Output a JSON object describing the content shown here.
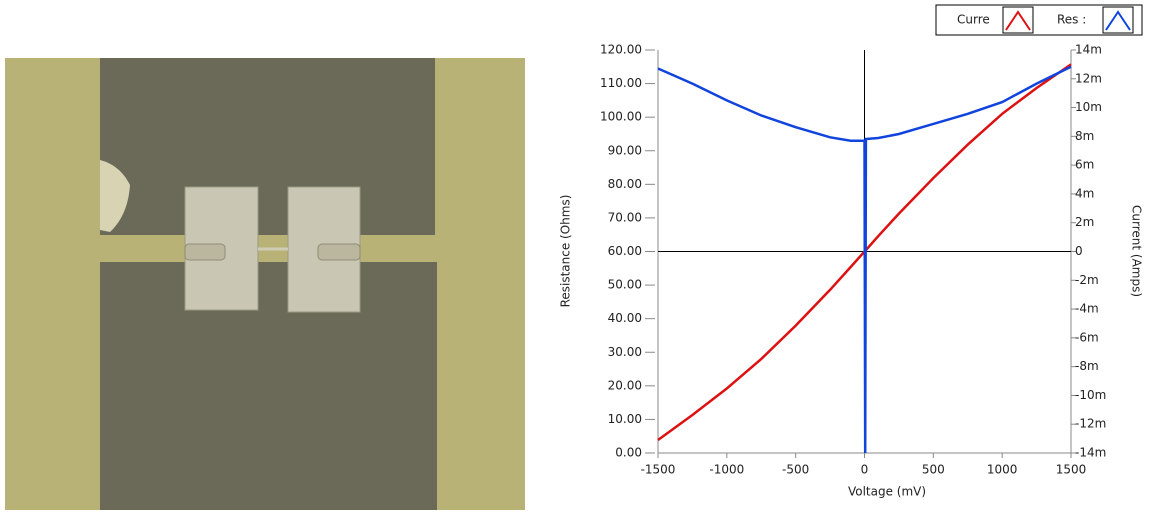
{
  "chart_data": {
    "type": "line",
    "x_label": "Voltage (mV)",
    "y_label": "Resistance (Ohms)",
    "y2_label": "Current (Amps)",
    "x": [
      -1500,
      -1250,
      -1000,
      -750,
      -500,
      -250,
      -100,
      0,
      5,
      10,
      100,
      250,
      500,
      750,
      1000,
      1250,
      1500
    ],
    "series": [
      {
        "name": "Curre",
        "color": "#dd1111",
        "axis": "y2",
        "values": [
          -0.0131,
          -0.01136,
          -0.00952,
          -0.00746,
          -0.00515,
          -0.00266,
          -0.00108,
          0,
          5e-05,
          0.0001,
          0.00107,
          0.00263,
          0.0051,
          0.00743,
          0.00957,
          0.01136,
          0.013
        ]
      },
      {
        "name": "Res :",
        "color": "#1144dd",
        "axis": "y",
        "values": [
          114.5,
          110,
          105,
          100.5,
          97,
          94,
          93,
          93,
          0,
          93.5,
          93.8,
          95,
          98,
          101,
          104.5,
          110,
          115
        ]
      }
    ],
    "xlim": [
      -1500,
      1500
    ],
    "xticks": [
      -1500,
      -1000,
      -500,
      0,
      500,
      1000,
      1500
    ],
    "ylim": [
      0,
      120
    ],
    "yticks": [
      {
        "value": 0,
        "label": "0.00"
      },
      {
        "value": 10,
        "label": "10.00"
      },
      {
        "value": 20,
        "label": "20.00"
      },
      {
        "value": 30,
        "label": "30.00"
      },
      {
        "value": 40,
        "label": "40.00"
      },
      {
        "value": 50,
        "label": "50.00"
      },
      {
        "value": 60,
        "label": "60.00"
      },
      {
        "value": 70,
        "label": "70.00"
      },
      {
        "value": 80,
        "label": "80.00"
      },
      {
        "value": 90,
        "label": "90.00"
      },
      {
        "value": 100,
        "label": "100.00"
      },
      {
        "value": 110,
        "label": "110.00"
      },
      {
        "value": 120,
        "label": "120.00"
      }
    ],
    "y2lim": [
      -0.014,
      0.014
    ],
    "y2ticks": [
      {
        "value": -0.014,
        "label": "-14m"
      },
      {
        "value": -0.012,
        "label": "-12m"
      },
      {
        "value": -0.01,
        "label": "-10m"
      },
      {
        "value": -0.008,
        "label": "-8m"
      },
      {
        "value": -0.006,
        "label": "-6m"
      },
      {
        "value": -0.004,
        "label": "-4m"
      },
      {
        "value": -0.002,
        "label": "-2m"
      },
      0,
      {
        "value": 0.002,
        "label": "2m"
      },
      {
        "value": 0.004,
        "label": "4m"
      },
      {
        "value": 0.006,
        "label": "6m"
      },
      {
        "value": 0.008,
        "label": "8m"
      },
      {
        "value": 0.01,
        "label": "10m"
      },
      {
        "value": 0.012,
        "label": "12m"
      },
      {
        "value": 0.014,
        "label": "14m"
      }
    ],
    "cursor_x_tick": 3,
    "cursor_y_tick": 6
  }
}
